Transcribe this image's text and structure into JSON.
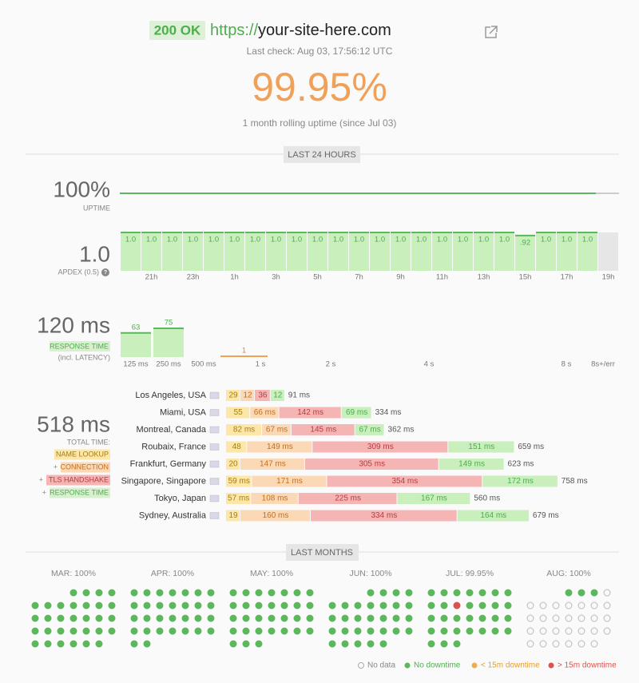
{
  "header": {
    "status": "200 OK",
    "scheme": "https://",
    "host": "your-site-here.com",
    "last_check": "Last check: Aug 03, 17:56:12 UTC",
    "uptime": "99.95%",
    "uptime_caption": "1 month rolling uptime (since Jul 03)"
  },
  "last_24h": {
    "section_title": "LAST 24 HOURS",
    "uptime": {
      "value_label": "100%",
      "label": "UPTIME"
    },
    "apdex": {
      "value_label": "1.0",
      "label": "APDEX (0.5)",
      "help": "?",
      "hours": [
        null,
        "21h",
        null,
        "23h",
        null,
        "1h",
        null,
        "3h",
        null,
        "5h",
        null,
        "7h",
        null,
        "9h",
        null,
        "11h",
        null,
        "13h",
        null,
        "15h",
        null,
        "17h",
        null,
        "19h"
      ],
      "values": [
        1,
        1,
        1,
        1,
        1,
        1,
        1,
        1,
        1,
        1,
        1,
        1,
        1,
        1,
        1,
        1,
        1,
        1,
        1,
        0.92,
        1,
        1,
        1,
        null
      ],
      "value_labels": [
        "1.0",
        "1.0",
        "1.0",
        "1.0",
        "1.0",
        "1.0",
        "1.0",
        "1.0",
        "1.0",
        "1.0",
        "1.0",
        "1.0",
        "1.0",
        "1.0",
        "1.0",
        "1.0",
        "1.0",
        "1.0",
        "1.0",
        ".92",
        "1.0",
        "1.0",
        "1.0",
        null
      ]
    },
    "response_time": {
      "value_label": "120 ms",
      "badge": "RESPONSE TIME",
      "note": "(incl. LATENCY)",
      "buckets": [
        "125 ms",
        "250 ms",
        "500 ms",
        "1 s",
        "2 s",
        "4 s",
        "8 s",
        "8s+/err"
      ],
      "values": [
        63,
        75,
        null,
        1,
        null,
        null,
        null,
        null
      ]
    },
    "locations": {
      "value_label": "518 ms",
      "label": "TOTAL TIME:",
      "join": "+",
      "phases": [
        "NAME LOOKUP",
        "CONNECTION",
        "TLS HANDSHAKE",
        "RESPONSE TIME"
      ],
      "rows": [
        {
          "name": "Los Angeles, USA",
          "values": [
            29,
            12,
            36,
            12
          ],
          "value_labels": [
            "29",
            "12",
            "36",
            "12"
          ],
          "total": "91 ms"
        },
        {
          "name": "Miami, USA",
          "values": [
            55,
            66,
            142,
            69
          ],
          "value_labels": [
            "55",
            "66 ms",
            "142 ms",
            "69 ms"
          ],
          "total": "334 ms"
        },
        {
          "name": "Montreal, Canada",
          "values": [
            82,
            67,
            145,
            67
          ],
          "value_labels": [
            "82 ms",
            "67 ms",
            "145 ms",
            "67 ms"
          ],
          "total": "362 ms"
        },
        {
          "name": "Roubaix, France",
          "values": [
            48,
            149,
            309,
            151
          ],
          "value_labels": [
            "48",
            "149 ms",
            "309 ms",
            "151 ms"
          ],
          "total": "659 ms"
        },
        {
          "name": "Frankfurt, Germany",
          "values": [
            20,
            147,
            305,
            149
          ],
          "value_labels": [
            "20",
            "147 ms",
            "305 ms",
            "149 ms"
          ],
          "total": "623 ms"
        },
        {
          "name": "Singapore, Singapore",
          "values": [
            59,
            171,
            354,
            172
          ],
          "value_labels": [
            "59 ms",
            "171 ms",
            "354 ms",
            "172 ms"
          ],
          "total": "758 ms"
        },
        {
          "name": "Tokyo, Japan",
          "values": [
            57,
            108,
            225,
            167
          ],
          "value_labels": [
            "57 ms",
            "108 ms",
            "225 ms",
            "167 ms"
          ],
          "total": "560 ms"
        },
        {
          "name": "Sydney, Australia",
          "values": [
            19,
            160,
            334,
            164
          ],
          "value_labels": [
            "19",
            "160 ms",
            "334 ms",
            "164 ms"
          ],
          "total": "679 ms"
        }
      ]
    }
  },
  "last_months": {
    "section_title": "LAST MONTHS",
    "legend": [
      "No data",
      "No downtime",
      "< 15m downtime",
      "> 15m downtime"
    ],
    "months": [
      {
        "label": "MAR: 100%",
        "days": [
          null,
          null,
          null,
          1,
          1,
          1,
          1,
          1,
          1,
          1,
          1,
          1,
          1,
          1,
          1,
          1,
          1,
          1,
          1,
          1,
          1,
          1,
          1,
          1,
          1,
          1,
          1,
          1,
          1,
          1,
          1,
          1,
          1,
          1
        ]
      },
      {
        "label": "APR: 100%",
        "days": [
          1,
          1,
          1,
          1,
          1,
          1,
          1,
          1,
          1,
          1,
          1,
          1,
          1,
          1,
          1,
          1,
          1,
          1,
          1,
          1,
          1,
          1,
          1,
          1,
          1,
          1,
          1,
          1,
          1,
          1
        ]
      },
      {
        "label": "MAY: 100%",
        "days": [
          1,
          1,
          1,
          1,
          1,
          1,
          1,
          1,
          1,
          1,
          1,
          1,
          1,
          1,
          1,
          1,
          1,
          1,
          1,
          1,
          1,
          1,
          1,
          1,
          1,
          1,
          1,
          1,
          1,
          1,
          1
        ]
      },
      {
        "label": "JUN: 100%",
        "days": [
          null,
          null,
          null,
          1,
          1,
          1,
          1,
          1,
          1,
          1,
          1,
          1,
          1,
          1,
          1,
          1,
          1,
          1,
          1,
          1,
          1,
          1,
          1,
          1,
          1,
          1,
          1,
          1,
          1,
          1,
          1,
          1,
          1
        ]
      },
      {
        "label": "JUL: 99.95%",
        "days": [
          1,
          1,
          1,
          1,
          1,
          1,
          1,
          1,
          1,
          3,
          1,
          1,
          1,
          1,
          1,
          1,
          1,
          1,
          1,
          1,
          1,
          1,
          1,
          1,
          1,
          1,
          1,
          1,
          1,
          1,
          1
        ]
      },
      {
        "label": "AUG: 100%",
        "days": [
          null,
          null,
          null,
          1,
          1,
          1,
          0,
          0,
          0,
          0,
          0,
          0,
          0,
          0,
          0,
          0,
          0,
          0,
          0,
          0,
          0,
          0,
          0,
          0,
          0,
          0,
          0,
          0,
          0,
          0,
          0,
          0,
          0,
          0
        ]
      }
    ]
  }
}
